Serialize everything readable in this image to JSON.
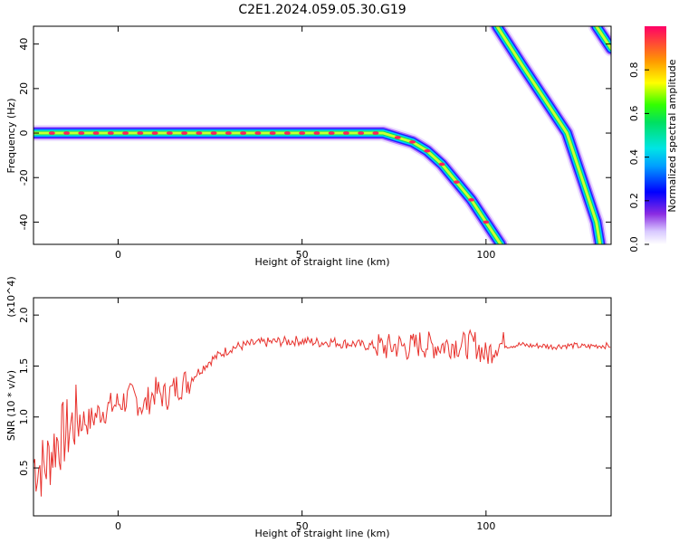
{
  "figure": {
    "title": "C2E1.2024.059.05.30.G19"
  },
  "chart_data": [
    {
      "type": "heatmap",
      "title": "C2E1.2024.059.05.30.G19",
      "xlabel": "Height of straight line (km)",
      "ylabel": "Frequency (Hz)",
      "xlim": [
        -23,
        134
      ],
      "ylim": [
        -50,
        48
      ],
      "x_ticks": [
        "0",
        "50",
        "100"
      ],
      "y_ticks": [
        "-40",
        "-20",
        "0",
        "20",
        "40"
      ],
      "colorbar": {
        "label": "Normalized spectral amplitude",
        "range": [
          0,
          1
        ],
        "ticks": [
          "0.0",
          "0.2",
          "0.4",
          "0.6",
          "0.8"
        ]
      },
      "ridges": [
        {
          "name": "main",
          "points": [
            [
              -23,
              0
            ],
            [
              0,
              0
            ],
            [
              20,
              0
            ],
            [
              40,
              0
            ],
            [
              60,
              0
            ],
            [
              72,
              0
            ],
            [
              76,
              -2
            ],
            [
              80,
              -4
            ],
            [
              84,
              -8
            ],
            [
              88,
              -14
            ],
            [
              92,
              -22
            ],
            [
              96,
              -30
            ],
            [
              100,
              -40
            ],
            [
              104,
              -50
            ]
          ]
        },
        {
          "name": "upper-diagonal",
          "points": [
            [
              103,
              48
            ],
            [
              110,
              30
            ],
            [
              116,
              15
            ],
            [
              122,
              0
            ],
            [
              126,
              -20
            ],
            [
              130,
              -40
            ],
            [
              131,
              -50
            ]
          ]
        },
        {
          "name": "corner",
          "points": [
            [
              130,
              48
            ],
            [
              134,
              38
            ]
          ]
        }
      ]
    },
    {
      "type": "line",
      "xlabel": "Height of straight line (km)",
      "ylabel": "SNR (10 * v/v)",
      "y_multiplier": "(x10^4)",
      "xlim": [
        -23,
        134
      ],
      "ylim": [
        0.03,
        2.17
      ],
      "x_ticks": [
        "0",
        "50",
        "100"
      ],
      "y_ticks": [
        "0.5",
        "1.0",
        "1.5",
        "2.0"
      ],
      "series": [
        {
          "color": "#e8322d",
          "x": [
            -23,
            -20,
            -17,
            -14,
            -11,
            -8,
            -5,
            -2,
            1,
            4,
            7,
            10,
            13,
            16,
            19,
            22,
            25,
            28,
            31,
            34,
            37,
            40,
            43,
            46,
            49,
            52,
            55,
            58,
            61,
            64,
            67,
            70,
            73,
            76,
            79,
            82,
            85,
            88,
            91,
            94,
            97,
            100,
            103,
            106,
            109,
            112,
            115,
            118,
            121,
            124,
            127,
            130,
            134
          ],
          "values": [
            0.55,
            0.5,
            0.75,
            0.85,
            1.0,
            0.95,
            1.05,
            1.1,
            1.15,
            1.2,
            1.1,
            1.25,
            1.2,
            1.3,
            1.35,
            1.45,
            1.55,
            1.62,
            1.68,
            1.7,
            1.72,
            1.73,
            1.74,
            1.74,
            1.75,
            1.74,
            1.73,
            1.74,
            1.72,
            1.72,
            1.7,
            1.7,
            1.68,
            1.7,
            1.68,
            1.72,
            1.7,
            1.7,
            1.72,
            1.7,
            1.72,
            1.6,
            1.72,
            1.7,
            1.71,
            1.7,
            1.7,
            1.69,
            1.7,
            1.7,
            1.69,
            1.7,
            1.7
          ]
        }
      ]
    }
  ]
}
